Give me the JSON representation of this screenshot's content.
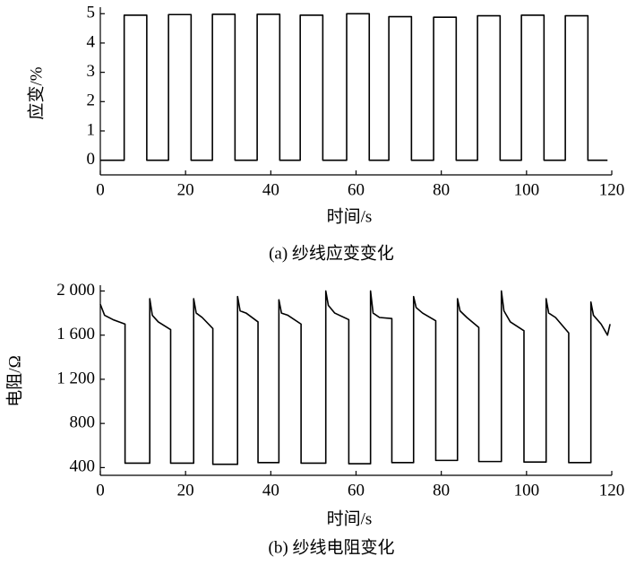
{
  "chart_data": [
    {
      "type": "line",
      "xlabel": "时间/s",
      "ylabel": "应变/%",
      "caption": "(a) 纱线应变变化",
      "color": "#000000",
      "xlim": [
        0,
        120
      ],
      "ylim": [
        -0.5,
        5.1
      ],
      "xticks": [
        0,
        20,
        40,
        60,
        80,
        100,
        120
      ],
      "yticks": [
        0,
        1,
        2,
        3,
        4,
        5
      ],
      "x": [
        0,
        5.6,
        5.6,
        10.9,
        10.9,
        16.0,
        16.0,
        21.3,
        21.3,
        26.3,
        26.3,
        31.6,
        31.6,
        36.8,
        36.8,
        42.1,
        42.1,
        46.9,
        46.9,
        52.2,
        52.2,
        57.8,
        57.8,
        63.1,
        63.1,
        67.7,
        67.7,
        73.0,
        73.0,
        78.2,
        78.2,
        83.5,
        83.5,
        88.5,
        88.5,
        93.8,
        93.8,
        98.8,
        98.8,
        104.1,
        104.1,
        109.1,
        109.1,
        114.4,
        114.4,
        119
      ],
      "values": [
        0,
        0,
        4.95,
        4.95,
        0,
        0,
        4.97,
        4.97,
        0,
        0,
        4.98,
        4.98,
        0,
        0,
        4.98,
        4.98,
        0,
        0,
        4.95,
        4.95,
        0,
        0,
        5.0,
        5.0,
        0,
        0,
        4.9,
        4.9,
        0,
        0,
        4.88,
        4.88,
        0,
        0,
        4.93,
        4.93,
        0,
        0,
        4.95,
        4.95,
        0,
        0,
        4.93,
        4.93,
        0,
        0
      ]
    },
    {
      "type": "line",
      "xlabel": "时间/s",
      "ylabel": "电阻/Ω",
      "caption": "(b) 纱线电阻变化",
      "color": "#000000",
      "xlim": [
        0,
        120
      ],
      "ylim": [
        330,
        2020
      ],
      "xticks": [
        0,
        20,
        40,
        60,
        80,
        100,
        120
      ],
      "yticks": [
        400,
        800,
        {
          "value": 1200,
          "label": "1 200"
        },
        {
          "value": 1600,
          "label": "1 600"
        },
        {
          "value": 2000,
          "label": "2 000"
        }
      ],
      "x": [
        0,
        1,
        3,
        5.8,
        5.8,
        11.6,
        11.6,
        12.2,
        13.6,
        16.5,
        16.5,
        21.9,
        21.9,
        22.5,
        23.9,
        26.4,
        26.4,
        32.2,
        32.2,
        32.8,
        34.2,
        37.0,
        37.0,
        41.9,
        41.9,
        42.5,
        44,
        47.1,
        47.1,
        52.9,
        52.9,
        53.5,
        55,
        58.3,
        58.3,
        63.4,
        63.4,
        64,
        65.5,
        68.4,
        68.4,
        73.5,
        73.5,
        74.1,
        75.6,
        78.7,
        78.7,
        83.8,
        83.8,
        84.4,
        86,
        88.8,
        88.8,
        94.1,
        94.1,
        94.7,
        96.2,
        99.4,
        99.4,
        104.6,
        104.6,
        105.2,
        106.8,
        109.9,
        109.9,
        115.1,
        115.1,
        115.7,
        117.5,
        119,
        119.6
      ],
      "values": [
        1880,
        1780,
        1740,
        1700,
        440,
        440,
        1930,
        1780,
        1720,
        1650,
        440,
        440,
        1930,
        1800,
        1760,
        1660,
        430,
        430,
        1950,
        1820,
        1800,
        1720,
        445,
        445,
        1920,
        1800,
        1780,
        1700,
        440,
        440,
        2000,
        1870,
        1800,
        1740,
        435,
        435,
        2000,
        1800,
        1760,
        1750,
        445,
        445,
        1950,
        1850,
        1800,
        1730,
        465,
        465,
        1930,
        1820,
        1760,
        1670,
        455,
        455,
        2000,
        1820,
        1720,
        1640,
        450,
        450,
        1930,
        1800,
        1760,
        1620,
        445,
        445,
        1900,
        1780,
        1700,
        1600,
        1700
      ]
    }
  ]
}
